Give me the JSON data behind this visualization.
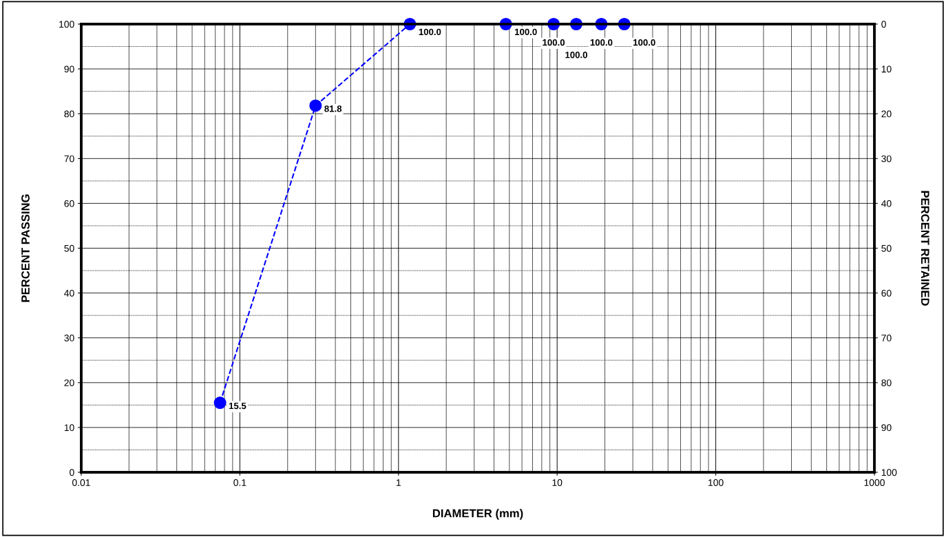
{
  "chart_data": {
    "type": "line",
    "xlabel": "DIAMETER (mm)",
    "ylabel": "PERCENT PASSING",
    "y2label": "PERCENT RETAINED",
    "log": "x",
    "x": [
      0.075,
      0.3,
      1.18,
      4.75,
      9.5,
      13.2,
      19,
      26.5
    ],
    "series": [
      {
        "color": "#0000ff",
        "values": [
          15.5,
          81.8,
          100,
          100,
          100,
          100,
          100,
          100
        ]
      }
    ],
    "value_labels": [
      "15.5",
      "81.8",
      "100.0",
      "100.0",
      "100.0",
      "100.0",
      "100.0",
      "100.0"
    ],
    "marker": "circle",
    "line_style": "dashed",
    "grid": true,
    "xlim": [
      0.01,
      1000
    ],
    "xticks": [
      0.01,
      0.1,
      1,
      10,
      100,
      1000
    ],
    "ylim": [
      0,
      100
    ],
    "yticks": [
      0,
      10,
      20,
      30,
      40,
      50,
      60,
      70,
      80,
      90,
      100
    ],
    "y2lim": [
      100,
      0
    ],
    "y2ticks": [
      0,
      10,
      20,
      30,
      40,
      50,
      60,
      70,
      80,
      90,
      100
    ]
  }
}
